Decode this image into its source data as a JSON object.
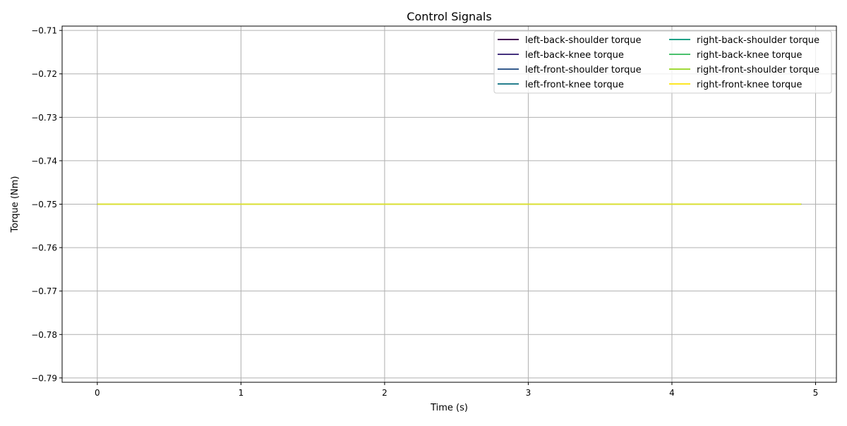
{
  "chart_data": {
    "type": "line",
    "title": "Control Signals",
    "xlabel": "Time (s)",
    "ylabel": "Torque (Nm)",
    "xlim": [
      -0.245,
      5.145
    ],
    "ylim": [
      -0.791,
      -0.709
    ],
    "x_ticks": [
      0,
      1,
      2,
      3,
      4,
      5
    ],
    "x_tick_labels": [
      "0",
      "1",
      "2",
      "3",
      "4",
      "5"
    ],
    "y_ticks": [
      -0.71,
      -0.72,
      -0.73,
      -0.74,
      -0.75,
      -0.76,
      -0.77,
      -0.78,
      -0.79
    ],
    "y_tick_labels": [
      "−0.71",
      "−0.72",
      "−0.73",
      "−0.74",
      "−0.75",
      "−0.76",
      "−0.77",
      "−0.78",
      "−0.79"
    ],
    "grid": true,
    "legend_position": "top-right",
    "legend_columns": 2,
    "x": [
      0,
      4.9
    ],
    "series": [
      {
        "name": "left-back-shoulder torque",
        "color": "#440154",
        "values": [
          -0.75,
          -0.75
        ]
      },
      {
        "name": "left-back-knee torque",
        "color": "#46327e",
        "values": [
          -0.75,
          -0.75
        ]
      },
      {
        "name": "left-front-shoulder torque",
        "color": "#365c8d",
        "values": [
          -0.75,
          -0.75
        ]
      },
      {
        "name": "left-front-knee torque",
        "color": "#277f8e",
        "values": [
          -0.75,
          -0.75
        ]
      },
      {
        "name": "right-back-shoulder torque",
        "color": "#1fa187",
        "values": [
          -0.75,
          -0.75
        ]
      },
      {
        "name": "right-back-knee torque",
        "color": "#4ac16d",
        "values": [
          -0.75,
          -0.75
        ]
      },
      {
        "name": "right-front-shoulder torque",
        "color": "#a0da39",
        "values": [
          -0.75,
          -0.75
        ]
      },
      {
        "name": "right-front-knee torque",
        "color": "#fde725",
        "values": [
          -0.75,
          -0.75
        ]
      }
    ]
  }
}
